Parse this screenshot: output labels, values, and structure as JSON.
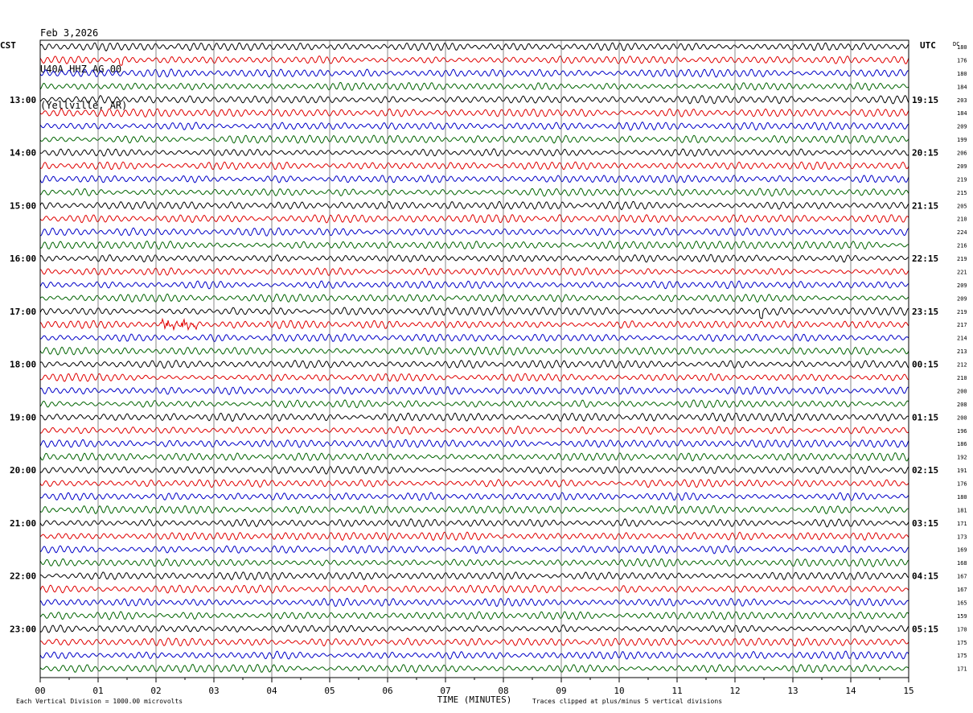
{
  "header": {
    "date": "Feb 3,2026",
    "station": "U40A HHZ AG 00",
    "location": "(Yellville, AR)"
  },
  "labels": {
    "left_zone": "CST",
    "right_zone": "UTC",
    "right_column": "DC"
  },
  "footer": {
    "scale": "Each Vertical Division = 1000.00 microvolts",
    "clip": "Traces clipped at plus/minus 5 vertical divisions"
  },
  "colors": {
    "trace_cycle": [
      "#000000",
      "#e00000",
      "#0000c8",
      "#006400"
    ],
    "grid": "#000000"
  },
  "chart_data": {
    "type": "line",
    "xlabel": "TIME (MINUTES)",
    "x_ticks": [
      "00",
      "01",
      "02",
      "03",
      "04",
      "05",
      "06",
      "07",
      "08",
      "09",
      "10",
      "11",
      "12",
      "13",
      "14",
      "15"
    ],
    "xlim": [
      0,
      15
    ],
    "rows_per_hour": 4,
    "hour_labels_cst": [
      "13:00",
      "14:00",
      "15:00",
      "16:00",
      "17:00",
      "18:00",
      "19:00",
      "20:00",
      "21:00",
      "22:00",
      "23:00"
    ],
    "hour_labels_utc": [
      "19:15",
      "20:15",
      "21:15",
      "22:15",
      "23:15",
      "00:15",
      "01:15",
      "02:15",
      "03:15",
      "04:15",
      "05:15"
    ],
    "dc_values": [
      180,
      176,
      180,
      184,
      203,
      184,
      209,
      199,
      206,
      209,
      219,
      215,
      205,
      210,
      224,
      216,
      219,
      221,
      209,
      209,
      219,
      217,
      214,
      213,
      212,
      210,
      200,
      208,
      200,
      196,
      186,
      192,
      191,
      176,
      180,
      181,
      171,
      173,
      169,
      168,
      167,
      167,
      165,
      159,
      170,
      175,
      175,
      171
    ],
    "events": [
      {
        "row": 1,
        "minute": 1.4,
        "kind": "small spike"
      },
      {
        "row": 21,
        "minute": 2.4,
        "kind": "burst"
      },
      {
        "row": 20,
        "minute": 12.45,
        "kind": "spike"
      }
    ]
  }
}
